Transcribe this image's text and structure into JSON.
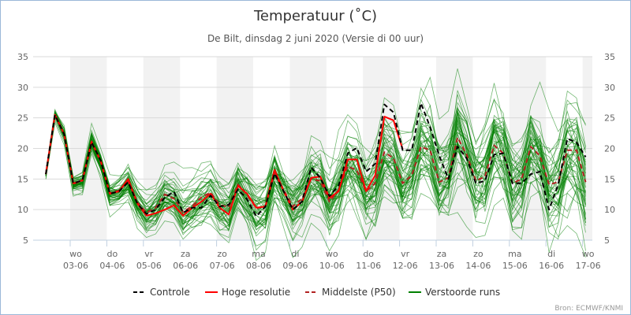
{
  "chart_data": {
    "type": "line",
    "title": "Temperatuur (˚C)",
    "subtitle": "De Bilt, dinsdag 2 juni 2020 (Versie di 00 uur)",
    "xlabel": "",
    "ylabel": "",
    "ylim": [
      5,
      35
    ],
    "yticks": [
      5,
      10,
      15,
      20,
      25,
      30,
      35
    ],
    "grid": true,
    "legend_position": "bottom-center",
    "x_units": "hours since 03-06 00:00",
    "x_start": -16,
    "x_step": 6,
    "days": [
      {
        "weekday": "wo",
        "date": "03-06"
      },
      {
        "weekday": "do",
        "date": "04-06"
      },
      {
        "weekday": "vr",
        "date": "05-06"
      },
      {
        "weekday": "za",
        "date": "06-06"
      },
      {
        "weekday": "zo",
        "date": "07-06"
      },
      {
        "weekday": "ma",
        "date": "08-06"
      },
      {
        "weekday": "di",
        "date": "09-06"
      },
      {
        "weekday": "wo",
        "date": "10-06"
      },
      {
        "weekday": "do",
        "date": "11-06"
      },
      {
        "weekday": "vr",
        "date": "12-06"
      },
      {
        "weekday": "za",
        "date": "13-06"
      },
      {
        "weekday": "zo",
        "date": "14-06"
      },
      {
        "weekday": "ma",
        "date": "15-06"
      },
      {
        "weekday": "di",
        "date": "16-06"
      },
      {
        "weekday": "wo",
        "date": "17-06"
      }
    ],
    "series": [
      {
        "name": "Controle",
        "color": "#000000",
        "dash": true,
        "values": [
          15.8,
          25.5,
          22.3,
          14.3,
          14.8,
          21.0,
          18.0,
          12.6,
          13.0,
          14.5,
          11.0,
          9.3,
          10.0,
          12.0,
          12.9,
          9.5,
          10.3,
          10.3,
          12.3,
          10.5,
          10.8,
          13.3,
          11.7,
          8.9,
          10.5,
          15.9,
          13.0,
          10.0,
          11.3,
          16.9,
          15.2,
          12.2,
          13.9,
          19.2,
          20.1,
          16.2,
          17.5,
          27.2,
          25.9,
          19.7,
          19.7,
          27.4,
          23.5,
          18.8,
          15.0,
          20.3,
          18.4,
          14.3,
          14.7,
          19.0,
          19.2,
          14.3,
          14.3,
          15.8,
          16.2,
          10.0,
          14.1,
          21.6,
          21.0,
          18.6
        ]
      },
      {
        "name": "Hoge resolutie",
        "color": "#ff0000",
        "dash": false,
        "values": [
          15.8,
          25.5,
          22.3,
          14.3,
          14.8,
          21.0,
          18.0,
          12.6,
          13.0,
          15.0,
          11.0,
          9.0,
          9.4,
          10.0,
          10.7,
          9.0,
          10.3,
          11.3,
          12.6,
          10.3,
          9.2,
          13.9,
          12.6,
          10.3,
          10.5,
          16.5,
          13.0,
          10.0,
          11.3,
          15.2,
          15.4,
          11.9,
          13.0,
          18.2,
          18.2,
          13.0,
          15.6,
          25.2,
          24.6,
          19.9
        ]
      },
      {
        "name": "Middelste (P50)",
        "color": "#b22222",
        "dash": true,
        "values": [
          15.8,
          25.6,
          22.4,
          14.2,
          14.7,
          21.2,
          17.8,
          12.7,
          13.1,
          14.6,
          11.2,
          9.5,
          10.3,
          12.5,
          11.8,
          9.6,
          10.6,
          12.0,
          12.8,
          10.8,
          10.4,
          14.1,
          12.4,
          10.2,
          10.6,
          15.9,
          13.2,
          10.5,
          11.8,
          15.0,
          14.7,
          11.3,
          13.2,
          17.1,
          16.4,
          13.0,
          14.3,
          19.4,
          18.4,
          14.3,
          15.6,
          20.3,
          19.7,
          14.5,
          15.2,
          21.8,
          19.0,
          14.7,
          15.4,
          20.5,
          19.2,
          14.3,
          15.0,
          20.3,
          18.8,
          14.1,
          14.5,
          19.7,
          19.7,
          14.5
        ]
      },
      {
        "name": "Verstoorde runs",
        "color": "#008000",
        "dash": false,
        "member_count": 50,
        "spread_std": [
          0.3,
          0.4,
          0.5,
          0.6,
          0.7,
          0.8,
          0.9,
          1.0,
          1.1,
          1.3,
          1.4,
          1.5,
          1.6,
          1.6,
          1.7,
          1.7,
          1.8,
          1.8,
          1.9,
          1.9,
          2.0,
          2.1,
          2.1,
          2.2,
          2.2,
          2.3,
          2.4,
          2.4,
          2.5,
          2.6,
          2.7,
          2.7,
          2.8,
          2.9,
          3.0,
          3.0,
          3.1,
          3.2,
          3.3,
          3.3,
          3.4,
          3.5,
          3.6,
          3.6,
          3.7,
          3.8,
          3.9,
          3.9,
          4.0,
          4.0,
          4.1,
          4.1,
          4.2,
          4.2,
          4.3,
          4.3,
          4.3,
          4.4,
          4.4,
          4.4
        ]
      }
    ]
  },
  "credit": "Bron: ECMWF/KNMI"
}
